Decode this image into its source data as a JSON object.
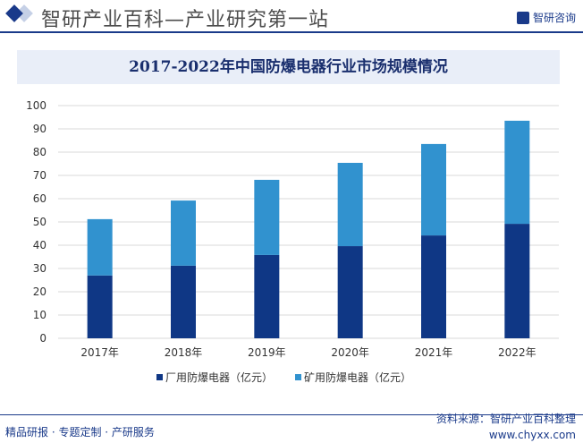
{
  "header": {
    "site_title": "智研产业百科—产业研究第一站",
    "brand": "智研咨询"
  },
  "footer": {
    "left": "精品研报 · 专题定制 · 产研服务",
    "source": "资料来源：智研产业百科整理",
    "url": "www.chyxx.com"
  },
  "chart_data": {
    "type": "bar",
    "stacked": true,
    "title": "2017-2022年中国防爆电器行业市场规模情况",
    "categories": [
      "2017年",
      "2018年",
      "2019年",
      "2020年",
      "2021年",
      "2022年"
    ],
    "series": [
      {
        "name": "厂用防爆电器（亿元）",
        "color": "#0f3785",
        "values": [
          27,
          31.2,
          35.8,
          39.6,
          44.2,
          49.2
        ]
      },
      {
        "name": "矿用防爆电器（亿元）",
        "color": "#3192cf",
        "values": [
          24.2,
          28,
          32.3,
          35.8,
          39.3,
          44.3
        ]
      }
    ],
    "ylim": [
      0,
      100
    ],
    "yticks": [
      0,
      10,
      20,
      30,
      40,
      50,
      60,
      70,
      80,
      90,
      100
    ],
    "grid": true,
    "legend": "bottom"
  }
}
